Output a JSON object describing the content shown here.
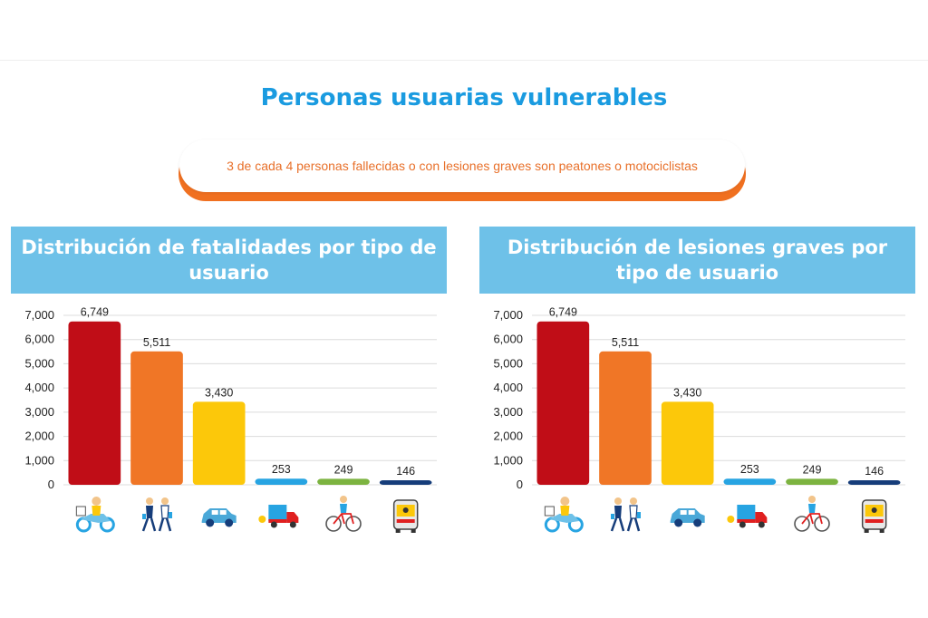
{
  "header": {
    "title": "Personas usuarias vulnerables",
    "subtitle": "3 de cada 4 personas fallecidas o con lesiones graves son peatones o motociclistas"
  },
  "colors": {
    "title": "#1a9be0",
    "accent": "#f07020",
    "panel_header": "#6ec1e8",
    "bars": [
      "#c00d17",
      "#f07626",
      "#fcc80a",
      "#27a4e2",
      "#7cb340",
      "#163d7a"
    ]
  },
  "chart_data": [
    {
      "type": "bar",
      "title": "Distribución de fatalidades por tipo de usuario",
      "categories": [
        "motorcycle-icon",
        "pedestrians-icon",
        "car-icon",
        "truck-icon",
        "bicycle-icon",
        "bus-icon"
      ],
      "values": [
        6749,
        5511,
        3430,
        253,
        249,
        146
      ],
      "value_labels": [
        "6,749",
        "5,511",
        "3,430",
        "253",
        "249",
        "146"
      ],
      "yticks": [
        "0",
        "1,000",
        "2,000",
        "3,000",
        "4,000",
        "5,000",
        "6,000",
        "7,000"
      ],
      "ylim": [
        0,
        7000
      ],
      "grid": true
    },
    {
      "type": "bar",
      "title": "Distribución de lesiones graves por tipo de usuario",
      "categories": [
        "motorcycle-icon",
        "pedestrians-icon",
        "car-icon",
        "truck-icon",
        "bicycle-icon",
        "bus-icon"
      ],
      "values": [
        6749,
        5511,
        3430,
        253,
        249,
        146
      ],
      "value_labels": [
        "6,749",
        "5,511",
        "3,430",
        "253",
        "249",
        "146"
      ],
      "yticks": [
        "0",
        "1,000",
        "2,000",
        "3,000",
        "4,000",
        "5,000",
        "6,000",
        "7,000"
      ],
      "ylim": [
        0,
        7000
      ],
      "grid": true
    }
  ]
}
